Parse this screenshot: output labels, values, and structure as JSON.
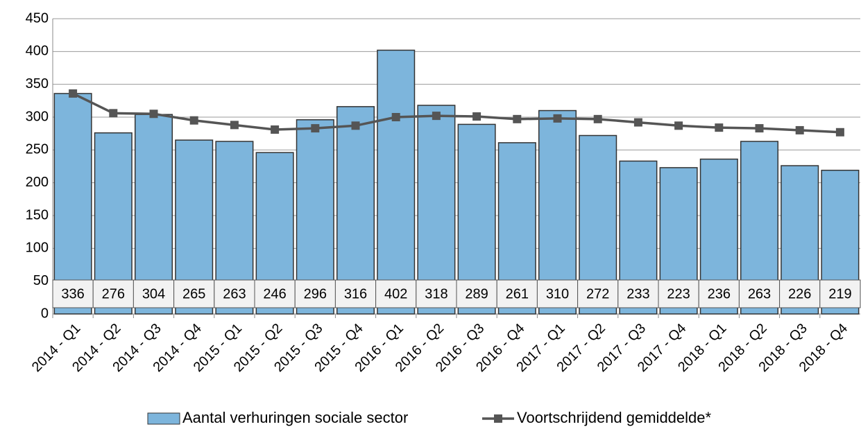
{
  "chart_data": {
    "type": "bar",
    "categories": [
      "2014 - Q1",
      "2014 - Q2",
      "2014 - Q3",
      "2014 - Q4",
      "2015 - Q1",
      "2015 - Q2",
      "2015 - Q3",
      "2015 - Q4",
      "2016 - Q1",
      "2016 - Q2",
      "2016 - Q3",
      "2016 - Q4",
      "2017 - Q1",
      "2017 - Q2",
      "2017 - Q3",
      "2017 - Q4",
      "2018 - Q1",
      "2018 - Q2",
      "2018 - Q3",
      "2018 - Q4"
    ],
    "series": [
      {
        "name": "Aantal verhuringen sociale sector",
        "type": "bar",
        "color": "#7db5dc",
        "values": [
          336,
          276,
          304,
          265,
          263,
          246,
          296,
          316,
          402,
          318,
          289,
          261,
          310,
          272,
          233,
          223,
          236,
          263,
          226,
          219
        ]
      },
      {
        "name": "Voortschrijdend gemiddelde*",
        "type": "line",
        "color": "#555555",
        "values": [
          336,
          306,
          305,
          295,
          288,
          281,
          283,
          287,
          300,
          302,
          301,
          297,
          298,
          297,
          292,
          287,
          284,
          283,
          280,
          277
        ]
      }
    ],
    "ylim": [
      0,
      450
    ],
    "yticks": [
      0,
      50,
      100,
      150,
      200,
      250,
      300,
      350,
      400,
      450
    ],
    "grid": true,
    "legend": "bottom"
  }
}
